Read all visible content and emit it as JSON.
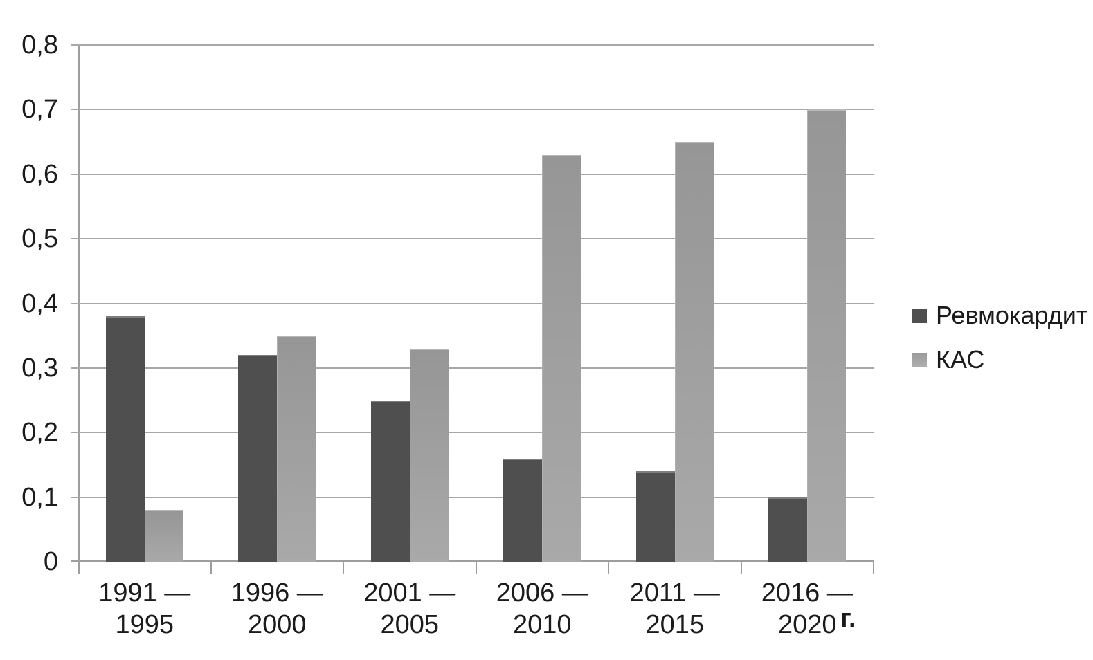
{
  "chart_data": {
    "type": "bar",
    "title": "",
    "categories": [
      {
        "line1": "1991 —",
        "line2": "1995"
      },
      {
        "line1": "1996 —",
        "line2": "2000"
      },
      {
        "line1": "2001 —",
        "line2": "2005"
      },
      {
        "line1": "2006 —",
        "line2": "2010"
      },
      {
        "line1": "2011 —",
        "line2": "2015"
      },
      {
        "line1": "2016 —",
        "line2": "2020"
      }
    ],
    "series": [
      {
        "name": "Ревмокардит",
        "color": "#4f4f4f",
        "values": [
          0.38,
          0.32,
          0.25,
          0.16,
          0.14,
          0.1
        ]
      },
      {
        "name": "КАС",
        "color": "#9d9d9d",
        "values": [
          0.08,
          0.35,
          0.33,
          0.63,
          0.65,
          0.7
        ]
      }
    ],
    "ylim": [
      0,
      0.8
    ],
    "ytick_step": 0.1,
    "ytick_labels": [
      "0",
      "0,1",
      "0,2",
      "0,3",
      "0,4",
      "0,5",
      "0,6",
      "0,7",
      "0,8"
    ],
    "x_unit_label": "г.",
    "grid": true,
    "legend_position": "right",
    "gridline_color": "#a8a8a8",
    "axis_color": "#9e9e9e",
    "text_color": "#1b1b1b",
    "background_color": "#ffffff"
  }
}
